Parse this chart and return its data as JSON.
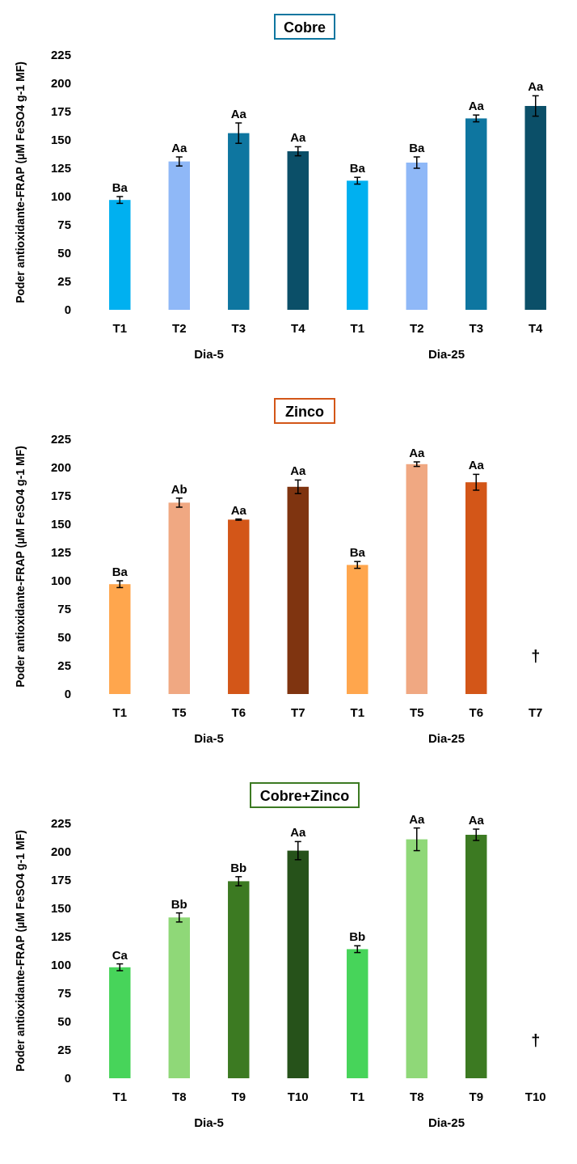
{
  "chart_data": [
    {
      "type": "bar",
      "title": "Cobre",
      "ylabel": "Poder antioxidante-FRAP (µM FeSO4 g-1 MF)",
      "categories": [
        "T1",
        "T2",
        "T3",
        "T4",
        "T1",
        "T2",
        "T3",
        "T4"
      ],
      "values": [
        97,
        131,
        156,
        140,
        114,
        130,
        169,
        180
      ],
      "errors": [
        3,
        4,
        9,
        4,
        3,
        5,
        3,
        9
      ],
      "colors": [
        "#00b0f0",
        "#8fb8f7",
        "#0e76a0",
        "#0b4f68",
        "#00b0f0",
        "#8fb8f7",
        "#0e76a0",
        "#0b4f68"
      ],
      "value_labels": [
        "Ba",
        "Aa",
        "Aa",
        "Aa",
        "Ba",
        "Ba",
        "Aa",
        "Aa"
      ],
      "annotations": [
        "Dia-5",
        "Dia-25"
      ],
      "ylim": [
        0,
        225
      ],
      "yticks": [
        0,
        25,
        50,
        75,
        100,
        125,
        150,
        175,
        200,
        225
      ]
    },
    {
      "type": "bar",
      "title": "Zinco",
      "ylabel": "Poder antioxidante-FRAP (µM FeSO4 g-1 MF)",
      "categories": [
        "T1",
        "T5",
        "T6",
        "T7",
        "T1",
        "T5",
        "T6",
        "T7"
      ],
      "values": [
        97,
        169,
        154,
        183,
        114,
        203,
        187,
        null
      ],
      "errors": [
        3,
        4,
        0.5,
        6,
        3,
        2,
        7,
        null
      ],
      "colors": [
        "#ffa64d",
        "#f0a882",
        "#d35618",
        "#7f3410",
        "#ffa64d",
        "#f0a882",
        "#d35618",
        null
      ],
      "value_labels": [
        "Ba",
        "Ab",
        "Aa",
        "Aa",
        "Ba",
        "Aa",
        "Aa",
        "†"
      ],
      "annotations": [
        "Dia-5",
        "Dia-25"
      ],
      "ylim": [
        0,
        225
      ],
      "yticks": [
        0,
        25,
        50,
        75,
        100,
        125,
        150,
        175,
        200,
        225
      ]
    },
    {
      "type": "bar",
      "title": "Cobre+Zinco",
      "ylabel": "Poder antioxidante-FRAP (µM FeSO4 g-1 MF)",
      "categories": [
        "T1",
        "T8",
        "T9",
        "T10",
        "T1",
        "T8",
        "T9",
        "T10"
      ],
      "values": [
        98,
        142,
        174,
        201,
        114,
        211,
        215,
        null
      ],
      "errors": [
        3,
        4,
        4,
        8,
        3,
        10,
        5,
        null
      ],
      "colors": [
        "#47d45a",
        "#8fd878",
        "#3c7a22",
        "#26521a",
        "#47d45a",
        "#8fd878",
        "#3c7a22",
        null
      ],
      "value_labels": [
        "Ca",
        "Bb",
        "Bb",
        "Aa",
        "Bb",
        "Aa",
        "Aa",
        "†"
      ],
      "annotations": [
        "Dia-5",
        "Dia-25"
      ],
      "ylim": [
        0,
        225
      ],
      "yticks": [
        0,
        25,
        50,
        75,
        100,
        125,
        150,
        175,
        200,
        225
      ]
    }
  ]
}
